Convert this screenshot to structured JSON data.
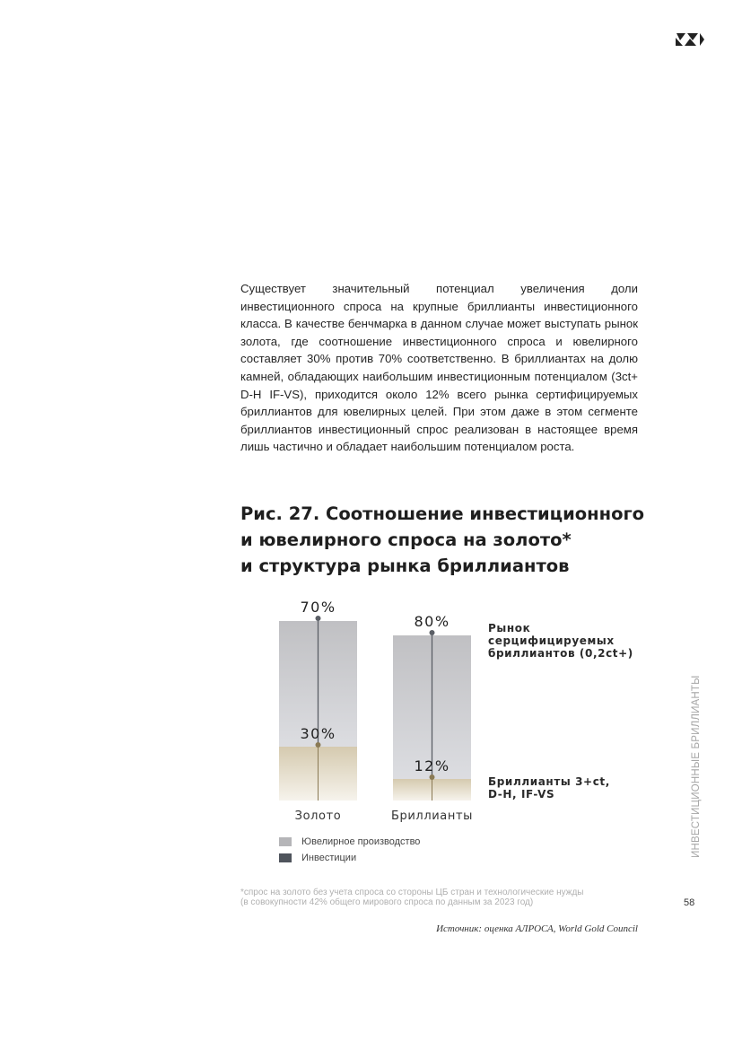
{
  "body_text": "Существует значительный потенциал увеличения доли инвестиционного спроса на крупные бриллианты инвестиционного класса. В качестве бенчмарка в данном случае может выступать рынок золота, где соотношение инвестиционного спроса и ювелирного составляет 30% против 70% соответственно. В бриллиантах на долю камней, обладающих наибольшим инвестиционным потенциалом (3ct+ D-H IF-VS), приходится около 12% всего рынка сертифицируемых бриллиантов для ювелирных целей. При этом даже в этом сегменте бриллиантов инвестиционный спрос реализован в настоящее время лишь частично и обладает наибольшим потенциалом роста.",
  "figure": {
    "title_lines": [
      "Рис. 27. Соотношение инвестиционного",
      "и ювелирного спроса на золото*",
      "и структура рынка бриллиантов"
    ]
  },
  "chart_data": {
    "type": "bar",
    "stacked": true,
    "categories": [
      "Золото",
      "Бриллианты"
    ],
    "series": [
      {
        "name": "Ювелирное производство",
        "values": [
          70,
          80
        ]
      },
      {
        "name": "Инвестиции",
        "values": [
          30,
          12
        ]
      }
    ],
    "data_labels": [
      [
        "70%",
        "80%"
      ],
      [
        "30%",
        "12%"
      ]
    ],
    "annotations": [
      {
        "lines": [
          "Рынок",
          "серцифицируемых",
          "бриллиантов (0,2ct+)"
        ]
      },
      {
        "lines": [
          "Бриллианты 3+ct,",
          "D-H, IF-VS"
        ]
      }
    ],
    "ylim": [
      0,
      100
    ]
  },
  "legend": [
    {
      "label": "Ювелирное производство",
      "color": "#b5b5b8"
    },
    {
      "label": "Инвестиции",
      "color": "#4f545c"
    }
  ],
  "colors": {
    "bar_top_light": "#dcdde1",
    "bar_top_dark": "#c0c0c3",
    "bar_gold_light": "#f6f3ec",
    "bar_gold_dark": "#d5caaf",
    "gold_marker": "#8a7a55",
    "grey_marker": "#5b5f66"
  },
  "side_label": "ИНВЕСТИЦИОННЫЕ БРИЛЛИАНТЫ",
  "footnote_lines": [
    "*спрос на золото без учета спроса со стороны ЦБ стран и технологические нужды",
    "(в совокупности 42% общего мирового спроса по данным за 2023 год)"
  ],
  "page_number": "58",
  "source": "Источник: оценка АЛРОСА, World Gold Council"
}
